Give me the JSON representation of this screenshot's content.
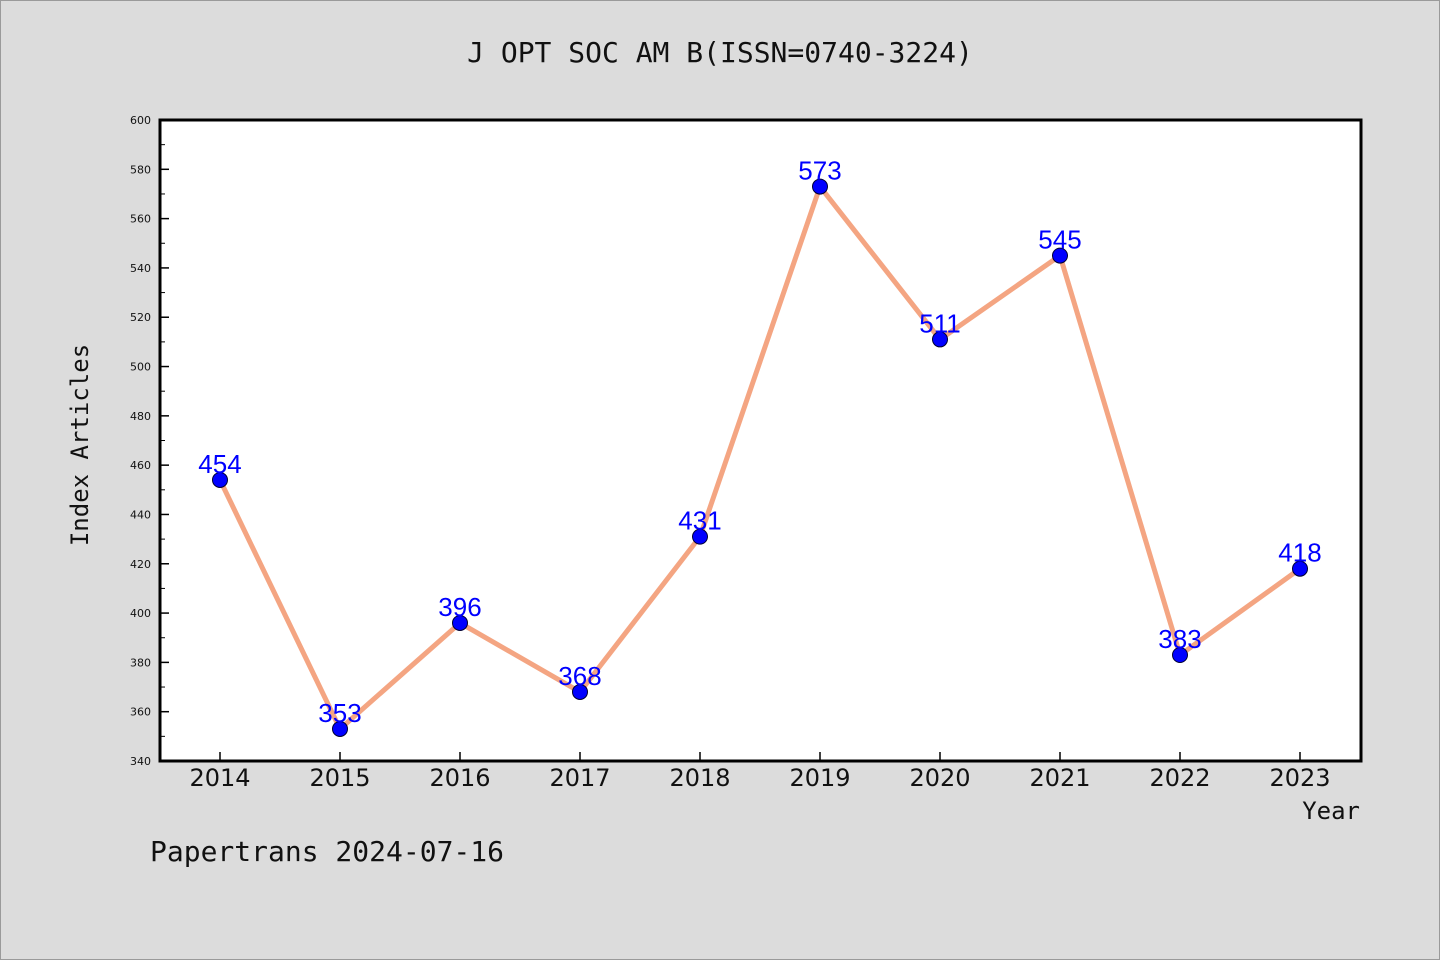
{
  "chart_data": {
    "type": "line",
    "title": "J OPT SOC AM B(ISSN=0740-3224)",
    "xlabel": "Year",
    "ylabel": "Index Articles",
    "categories": [
      "2014",
      "2015",
      "2016",
      "2017",
      "2018",
      "2019",
      "2020",
      "2021",
      "2022",
      "2023"
    ],
    "values": [
      454,
      353,
      396,
      368,
      431,
      573,
      511,
      545,
      383,
      418
    ],
    "data_labels": [
      "454",
      "353",
      "396",
      "368",
      "431",
      "573",
      "511",
      "545",
      "383",
      "418"
    ],
    "ylim": [
      340,
      600
    ],
    "yticks": [
      340,
      360,
      380,
      400,
      420,
      440,
      460,
      480,
      500,
      520,
      540,
      560,
      580,
      600
    ],
    "ytick_labels": [
      "340",
      "360",
      "380",
      "400",
      "420",
      "440",
      "460",
      "480",
      "500",
      "520",
      "540",
      "560",
      "580",
      "600"
    ],
    "grid": false,
    "line_color": "#f4a582",
    "marker_color": "#0000ff",
    "label_color": "#0000ff"
  },
  "footer": "Papertrans 2024-07-16"
}
